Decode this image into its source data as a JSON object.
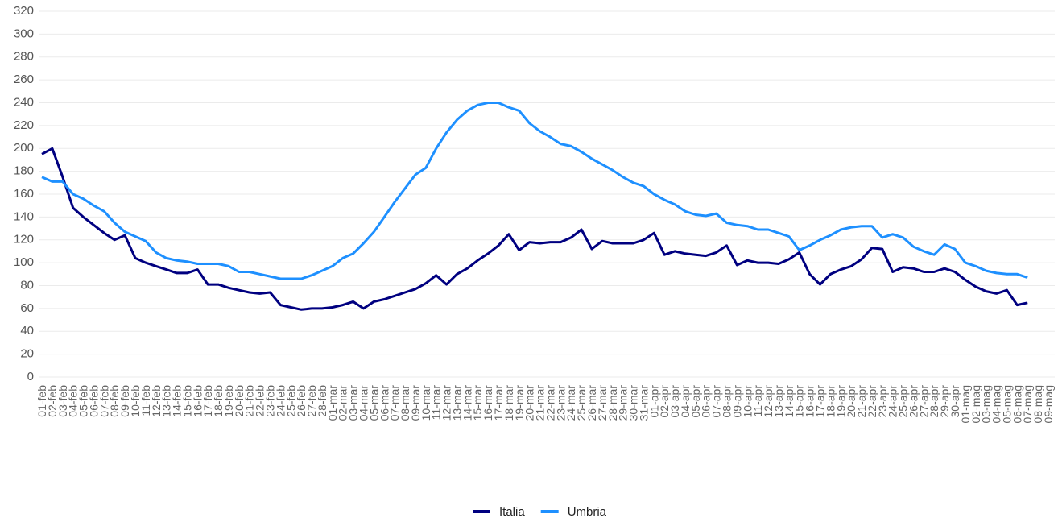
{
  "chart_data": {
    "type": "line",
    "categories": [
      "01-feb",
      "02-feb",
      "03-feb",
      "04-feb",
      "05-feb",
      "06-feb",
      "07-feb",
      "08-feb",
      "09-feb",
      "10-feb",
      "11-feb",
      "12-feb",
      "13-feb",
      "14-feb",
      "15-feb",
      "16-feb",
      "17-feb",
      "18-feb",
      "19-feb",
      "20-feb",
      "21-feb",
      "22-feb",
      "23-feb",
      "24-feb",
      "25-feb",
      "26-feb",
      "27-feb",
      "28-feb",
      "01-mar",
      "02-mar",
      "03-mar",
      "04-mar",
      "05-mar",
      "06-mar",
      "07-mar",
      "08-mar",
      "09-mar",
      "10-mar",
      "11-mar",
      "12-mar",
      "13-mar",
      "14-mar",
      "15-mar",
      "16-mar",
      "17-mar",
      "18-mar",
      "19-mar",
      "20-mar",
      "21-mar",
      "22-mar",
      "23-mar",
      "24-mar",
      "25-mar",
      "26-mar",
      "27-mar",
      "28-mar",
      "29-mar",
      "30-mar",
      "31-mar",
      "01-apr",
      "02-apr",
      "03-apr",
      "04-apr",
      "05-apr",
      "06-apr",
      "07-apr",
      "08-apr",
      "09-apr",
      "10-apr",
      "11-apr",
      "12-apr",
      "13-apr",
      "14-apr",
      "15-apr",
      "16-apr",
      "17-apr",
      "18-apr",
      "19-apr",
      "20-apr",
      "21-apr",
      "22-apr",
      "23-apr",
      "24-apr",
      "25-apr",
      "26-apr",
      "27-apr",
      "28-apr",
      "29-apr",
      "30-apr",
      "01-mag",
      "02-mag",
      "03-mag",
      "04-mag",
      "05-mag",
      "06-mag",
      "07-mag",
      "08-mag",
      "09-mag"
    ],
    "series": [
      {
        "name": "Italia",
        "color": "#000080",
        "values": [
          195,
          200,
          175,
          148,
          140,
          133,
          126,
          120,
          124,
          104,
          100,
          97,
          94,
          91,
          91,
          94,
          81,
          81,
          78,
          76,
          74,
          73,
          74,
          63,
          61,
          59,
          60,
          60,
          61,
          63,
          66,
          60,
          66,
          68,
          71,
          74,
          77,
          82,
          89,
          81,
          90,
          95,
          102,
          108,
          115,
          125,
          111,
          118,
          117,
          118,
          118,
          122,
          129,
          112,
          119,
          117,
          117,
          117,
          120,
          126,
          107,
          110,
          108,
          107,
          106,
          109,
          115,
          98,
          102,
          100,
          100,
          99,
          103,
          109,
          90,
          81,
          90,
          94,
          97,
          103,
          113,
          112,
          92,
          96,
          95,
          92,
          92,
          95,
          92,
          85,
          79,
          75,
          73,
          76,
          63,
          65,
          null,
          null
        ]
      },
      {
        "name": "Umbria",
        "color": "#1e90ff",
        "values": [
          175,
          171,
          171,
          160,
          156,
          150,
          145,
          135,
          127,
          123,
          119,
          109,
          104,
          102,
          101,
          99,
          99,
          99,
          97,
          92,
          92,
          90,
          88,
          86,
          86,
          86,
          89,
          93,
          97,
          104,
          108,
          117,
          127,
          140,
          153,
          165,
          177,
          183,
          200,
          214,
          225,
          233,
          238,
          240,
          240,
          236,
          233,
          222,
          215,
          210,
          204,
          202,
          197,
          191,
          186,
          181,
          175,
          170,
          167,
          160,
          155,
          151,
          145,
          142,
          141,
          143,
          135,
          133,
          132,
          129,
          129,
          126,
          123,
          111,
          115,
          120,
          124,
          129,
          131,
          132,
          132,
          122,
          125,
          122,
          114,
          110,
          107,
          116,
          112,
          100,
          97,
          93,
          91,
          90,
          90,
          87,
          null,
          null
        ]
      }
    ],
    "ylim": [
      0,
      320
    ],
    "yticks": [
      0,
      20,
      40,
      60,
      80,
      100,
      120,
      140,
      160,
      180,
      200,
      220,
      240,
      260,
      280,
      300,
      320
    ],
    "grid": true,
    "legend": "bottom"
  }
}
